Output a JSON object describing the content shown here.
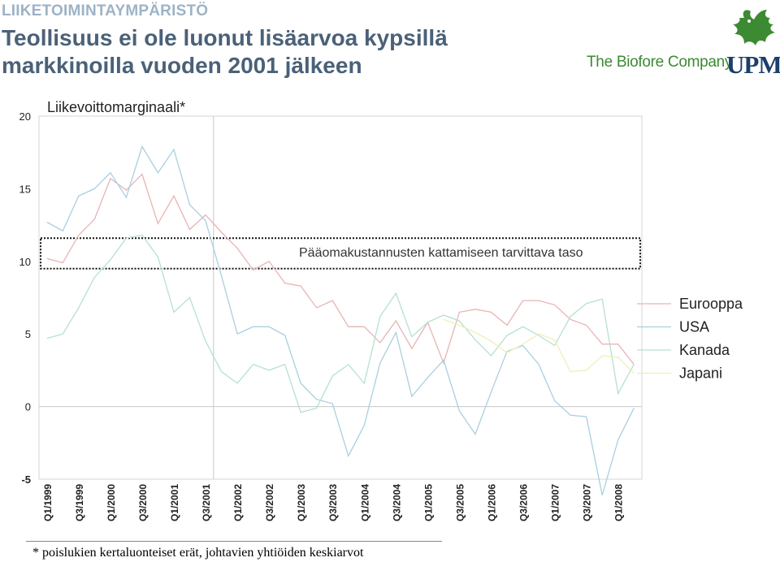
{
  "header": {
    "section": "LIIKETOIMINTAYMPÄRISTÖ",
    "title_line1": "Teollisuus ei ole luonut lisäarvoa kypsillä",
    "title_line2": "markkinoilla vuoden 2001 jälkeen"
  },
  "logo": {
    "tagline": "The Biofore Company",
    "brand": "UPM",
    "mark_icon": "upm-griffin-icon",
    "color_green": "#3c8a32",
    "color_navy": "#1a3f6b"
  },
  "footnote": "* poislukien kertaluonteiset erät, johtavien yhtiöiden keskiarvot",
  "chart_data": {
    "type": "line",
    "title": "Liikevoittomarginaali*",
    "ylim": [
      -5,
      20
    ],
    "yticks": [
      "20",
      "15",
      "10",
      "5",
      "0",
      "-5"
    ],
    "ytick_values": [
      20,
      15,
      10,
      5,
      0,
      -5
    ],
    "grid": false,
    "legend_position": "right",
    "annotation": "Pääomakustannusten kattamiseen tarvittava taso",
    "threshold_band": [
      9.5,
      11.6
    ],
    "x": [
      "Q1/1999",
      "Q2/1999",
      "Q3/1999",
      "Q4/1999",
      "Q1/2000",
      "Q2/2000",
      "Q3/2000",
      "Q4/2000",
      "Q1/2001",
      "Q2/2001",
      "Q3/2001",
      "Q4/2001",
      "Q1/2002",
      "Q2/2002",
      "Q3/2002",
      "Q4/2002",
      "Q1/2003",
      "Q2/2003",
      "Q3/2003",
      "Q4/2003",
      "Q1/2004",
      "Q2/2004",
      "Q3/2004",
      "Q4/2004",
      "Q1/2005",
      "Q2/2005",
      "Q3/2005",
      "Q4/2005",
      "Q1/2006",
      "Q2/2006",
      "Q3/2006",
      "Q4/2006",
      "Q1/2007",
      "Q2/2007",
      "Q3/2007",
      "Q4/2007",
      "Q1/2008",
      "Q2/2008"
    ],
    "x_tick_labels": [
      "Q1/1999",
      "Q3/1999",
      "Q1/2000",
      "Q3/2000",
      "Q1/2001",
      "Q3/2001",
      "Q1/2002",
      "Q3/2002",
      "Q1/2003",
      "Q3/2003",
      "Q1/2004",
      "Q3/2004",
      "Q1/2005",
      "Q3/2005",
      "Q1/2006",
      "Q3/2006",
      "Q1/2007",
      "Q3/2007",
      "Q1/2008"
    ],
    "series": [
      {
        "name": "Eurooppa",
        "color": "#e8b4b4",
        "values": [
          10.2,
          9.9,
          11.8,
          12.9,
          15.7,
          14.9,
          16.0,
          12.6,
          14.5,
          12.2,
          13.2,
          12.0,
          10.9,
          9.4,
          10.0,
          8.5,
          8.3,
          6.8,
          7.3,
          5.5,
          5.5,
          4.4,
          5.9,
          4.0,
          5.8,
          3.0,
          6.5,
          6.7,
          6.5,
          5.6,
          7.3,
          7.3,
          7.0,
          6.0,
          5.6,
          4.3,
          4.3,
          2.9
        ]
      },
      {
        "name": "USA",
        "color": "#a9cfe0",
        "values": [
          12.7,
          12.1,
          14.5,
          15.0,
          16.1,
          14.4,
          17.9,
          16.1,
          17.7,
          13.9,
          12.8,
          9.0,
          5.0,
          5.5,
          5.5,
          4.9,
          1.6,
          0.5,
          0.2,
          -3.4,
          -1.3,
          3.0,
          5.1,
          0.7,
          2.0,
          3.2,
          -0.3,
          -1.9,
          1.0,
          3.8,
          4.2,
          2.9,
          0.4,
          -0.6,
          -0.7,
          -6.1,
          -2.3,
          -0.1
        ]
      },
      {
        "name": "Kanada",
        "color": "#b6e0d2",
        "values": [
          4.7,
          5.0,
          6.8,
          8.9,
          10.1,
          11.6,
          11.8,
          10.3,
          6.5,
          7.5,
          4.5,
          2.4,
          1.6,
          2.9,
          2.5,
          2.9,
          -0.4,
          -0.1,
          2.1,
          2.9,
          1.6,
          6.2,
          7.8,
          4.8,
          5.8,
          6.3,
          5.9,
          4.6,
          3.5,
          4.9,
          5.5,
          4.9,
          4.2,
          6.2,
          7.1,
          7.4,
          0.9,
          2.9
        ]
      },
      {
        "name": "Japani",
        "color": "#efefb6",
        "values": [
          null,
          null,
          null,
          null,
          null,
          null,
          null,
          null,
          null,
          null,
          null,
          null,
          null,
          null,
          null,
          null,
          null,
          null,
          null,
          null,
          null,
          null,
          null,
          null,
          null,
          6.0,
          5.6,
          5.1,
          4.5,
          3.7,
          4.3,
          5.0,
          4.6,
          2.4,
          2.5,
          3.5,
          3.4,
          2.3
        ]
      }
    ]
  }
}
